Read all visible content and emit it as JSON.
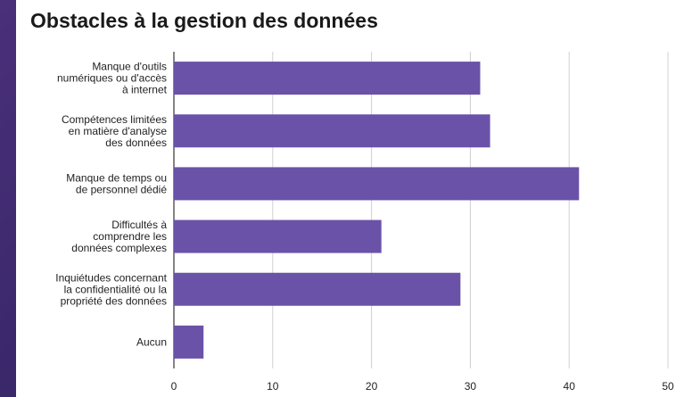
{
  "chart_data": {
    "type": "bar",
    "orientation": "horizontal",
    "title": "Obstacles à la gestion des données",
    "categories": [
      [
        "Manque d'outils",
        "numériques ou d'accès",
        "à internet"
      ],
      [
        "Compétences limitées",
        "en matière d'analyse",
        "des données"
      ],
      [
        "Manque de temps ou",
        "de personnel dédié"
      ],
      [
        "Difficultés à",
        "comprendre les",
        "données complexes"
      ],
      [
        "Inquiétudes concernant",
        "la confidentialité ou la",
        "propriété des données"
      ],
      [
        "Aucun"
      ]
    ],
    "values": [
      31,
      32,
      41,
      21,
      29,
      3
    ],
    "xlim": [
      0,
      50
    ],
    "xticks": [
      "0",
      "10",
      "20",
      "30",
      "40",
      "50"
    ],
    "grid": true,
    "bar_color": "#6a52a8"
  }
}
